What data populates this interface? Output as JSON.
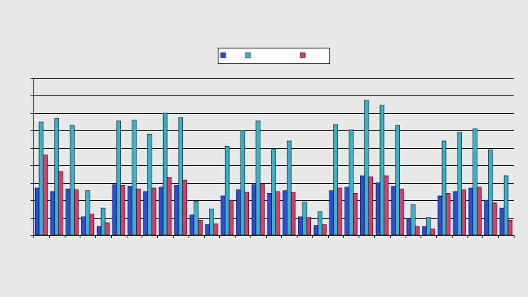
{
  "chart_data": {
    "type": "bar",
    "title": "",
    "xlabel": "",
    "ylabel": "",
    "grid": true,
    "legend_position": "top-center",
    "ylim": [
      0,
      180
    ],
    "ytick_step": 20,
    "categories": [
      "",
      "",
      "",
      "",
      "",
      "",
      "",
      "",
      "",
      "",
      "",
      "",
      "",
      "",
      "",
      "",
      "",
      "",
      "",
      "",
      "",
      "",
      "",
      "",
      "",
      "",
      "",
      "",
      "",
      "",
      ""
    ],
    "series": [
      {
        "name": "",
        "color": "#2a4de0",
        "values": [
          54,
          50,
          53,
          21,
          10,
          58,
          56,
          50,
          55,
          57,
          23,
          12,
          45,
          52,
          58,
          48,
          51,
          21,
          11,
          51,
          55,
          68,
          60,
          56,
          18,
          10,
          45,
          50,
          54,
          40,
          31
        ]
      },
      {
        "name": "",
        "color": "#33b3cc",
        "values": [
          130,
          134,
          126,
          51,
          31,
          131,
          132,
          116,
          140,
          135,
          39,
          30,
          102,
          120,
          131,
          99,
          108,
          38,
          27,
          127,
          121,
          155,
          149,
          126,
          35,
          20,
          108,
          118,
          122,
          98,
          68
        ]
      },
      {
        "name": "",
        "color": "#e03a6a",
        "values": [
          92,
          73,
          52,
          24,
          14,
          57,
          53,
          54,
          66,
          63,
          17,
          13,
          40,
          49,
          59,
          50,
          49,
          20,
          12,
          54,
          48,
          67,
          68,
          53,
          10,
          7,
          48,
          52,
          55,
          37,
          17
        ]
      }
    ]
  },
  "colors": {
    "background": "#e8e8e8",
    "grid": "#000000"
  }
}
